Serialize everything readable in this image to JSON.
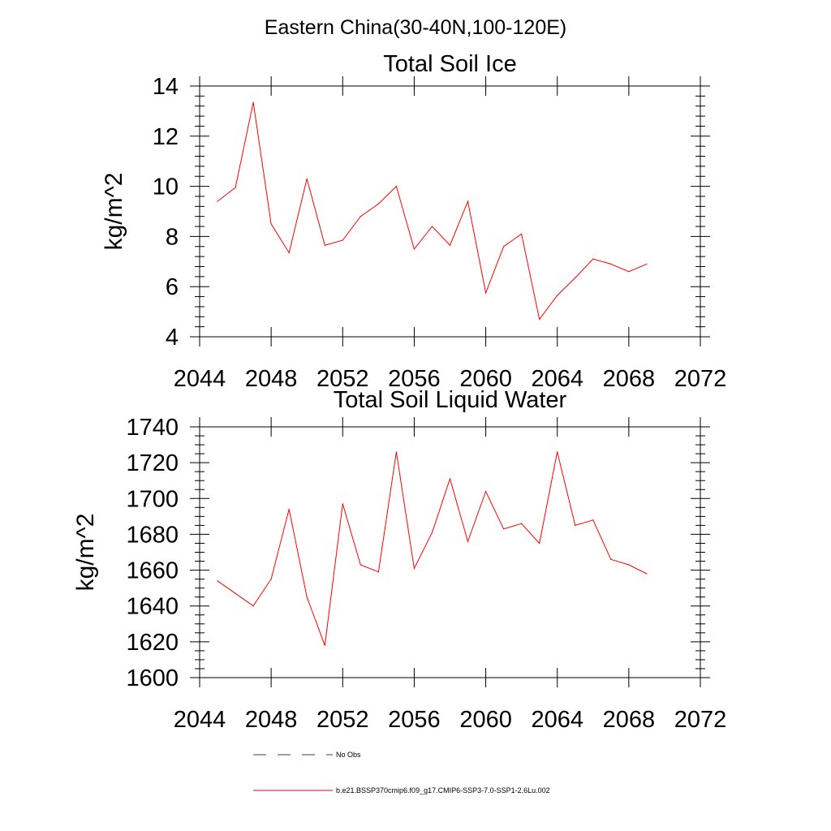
{
  "figure": {
    "title": "Eastern China(30-40N,100-120E)"
  },
  "chart_data": [
    {
      "type": "line",
      "title": "Total Soil Ice",
      "xlabel": "",
      "ylabel": "kg/m^2",
      "xlim": [
        2044,
        2072
      ],
      "ylim": [
        4,
        14
      ],
      "xticks": [
        2044,
        2048,
        2052,
        2056,
        2060,
        2064,
        2068,
        2072
      ],
      "yticks": [
        4,
        6,
        8,
        10,
        12,
        14
      ],
      "grid": false,
      "series": [
        {
          "name": "b.e21.BSSP370cmip6.f09_g17.CMIP6-SSP3-7.0-SSP1-2.6Lu.002",
          "color": "#ff0000",
          "x": [
            2045,
            2046,
            2047,
            2048,
            2049,
            2050,
            2051,
            2052,
            2053,
            2054,
            2055,
            2056,
            2057,
            2058,
            2059,
            2060,
            2061,
            2062,
            2063,
            2064,
            2065,
            2066,
            2067,
            2068,
            2069
          ],
          "y": [
            9.4,
            9.95,
            13.35,
            8.5,
            7.35,
            10.3,
            7.65,
            7.85,
            8.8,
            9.3,
            10.0,
            7.5,
            8.4,
            7.65,
            9.4,
            5.75,
            7.6,
            8.1,
            4.7,
            5.65,
            6.35,
            7.1,
            6.9,
            6.6,
            6.9
          ]
        }
      ]
    },
    {
      "type": "line",
      "title": "Total Soil Liquid Water",
      "xlabel": "",
      "ylabel": "kg/m^2",
      "xlim": [
        2044,
        2072
      ],
      "ylim": [
        1600,
        1740
      ],
      "xticks": [
        2044,
        2048,
        2052,
        2056,
        2060,
        2064,
        2068,
        2072
      ],
      "yticks": [
        1600,
        1620,
        1640,
        1660,
        1680,
        1700,
        1720,
        1740
      ],
      "grid": false,
      "series": [
        {
          "name": "b.e21.BSSP370cmip6.f09_g17.CMIP6-SSP3-7.0-SSP1-2.6Lu.002",
          "color": "#ff0000",
          "x": [
            2045,
            2046,
            2047,
            2048,
            2049,
            2050,
            2051,
            2052,
            2053,
            2054,
            2055,
            2056,
            2057,
            2058,
            2059,
            2060,
            2061,
            2062,
            2063,
            2064,
            2065,
            2066,
            2067,
            2068,
            2069
          ],
          "y": [
            1654,
            1647,
            1640,
            1655,
            1694,
            1645,
            1618,
            1697,
            1663,
            1659,
            1726,
            1661,
            1681,
            1711,
            1676,
            1704,
            1683,
            1686,
            1675,
            1726,
            1685,
            1688,
            1666,
            1663,
            1658
          ]
        }
      ]
    }
  ],
  "legend": {
    "placement": "bottom",
    "items": [
      {
        "label": "No Obs",
        "color": "#2f3a8f",
        "style": "dashed"
      },
      {
        "label": "b.e21.BSSP370cmip6.f09_g17.CMIP6-SSP3-7.0-SSP1-2.6Lu.002",
        "color": "#ff0000",
        "style": "solid"
      }
    ]
  }
}
